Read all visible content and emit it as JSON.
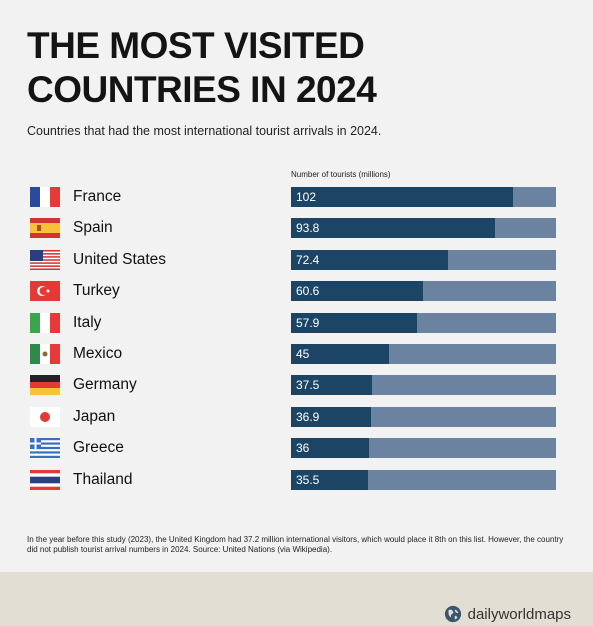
{
  "header": {
    "title": "THE MOST VISITED COUNTRIES IN 2024",
    "subtitle": "Countries that had the most international tourist arrivals in 2024."
  },
  "footnote": "In the year before this study (2023), the United Kingdom had 37.2 million international visitors, which would place it 8th on this list. However, the country did not publish tourist arrival numbers in 2024. Source: United Nations (via Wikipedia).",
  "brand": "dailyworldmaps",
  "colors": {
    "bar": "#1c4565",
    "track": "#6b82a0",
    "footer": "#e3ded3"
  },
  "chart_data": {
    "type": "bar",
    "orientation": "horizontal",
    "xlabel": "Number of tourists (millions)",
    "categories": [
      "France",
      "Spain",
      "United States",
      "Turkey",
      "Italy",
      "Mexico",
      "Germany",
      "Japan",
      "Greece",
      "Thailand"
    ],
    "values": [
      102,
      93.8,
      72.4,
      60.6,
      57.9,
      45,
      37.5,
      36.9,
      36,
      35.5
    ],
    "value_labels": [
      "102",
      "93.8",
      "72.4",
      "60.6",
      "57.9",
      "45",
      "37.5",
      "36.9",
      "36",
      "35.5"
    ],
    "xlim": [
      0,
      122
    ],
    "flags": [
      "france-flag-icon",
      "spain-flag-icon",
      "usa-flag-icon",
      "turkey-flag-icon",
      "italy-flag-icon",
      "mexico-flag-icon",
      "germany-flag-icon",
      "japan-flag-icon",
      "greece-flag-icon",
      "thailand-flag-icon"
    ]
  }
}
